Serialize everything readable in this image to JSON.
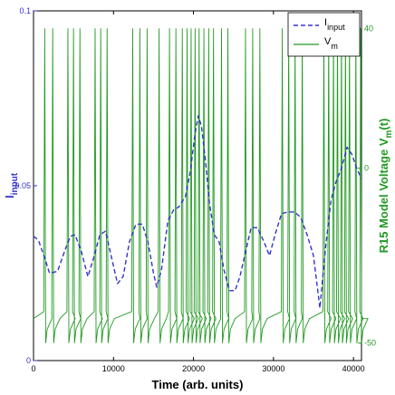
{
  "chart_data": {
    "type": "line",
    "xlabel": "Time (arb. units)",
    "x_ticks": [
      {
        "value": 0,
        "label": "0"
      },
      {
        "value": 10000,
        "label": "10000"
      },
      {
        "value": 20000,
        "label": "20000"
      },
      {
        "value": 30000,
        "label": "30000"
      },
      {
        "value": 40000,
        "label": "40000"
      }
    ],
    "xlim": [
      0,
      41000
    ],
    "y_left": {
      "label_main": "I",
      "label_sub": "input",
      "lim": [
        0,
        0.1
      ],
      "color": "#3333cc",
      "ticks": [
        {
          "value": 0,
          "label": "0"
        },
        {
          "value": 0.05,
          "label": "0.05"
        },
        {
          "value": 0.1,
          "label": "0.1"
        }
      ]
    },
    "y_right": {
      "label_main": "R15 Model Voltage V",
      "label_sub": "m",
      "label_end": "(t)",
      "lim": [
        -55,
        45
      ],
      "color": "#229922",
      "ticks": [
        {
          "value": -50,
          "label": "-50"
        },
        {
          "value": 0,
          "label": "0"
        },
        {
          "value": 40,
          "label": "40"
        }
      ]
    },
    "legend": {
      "position": "top-right",
      "entries": [
        {
          "main": "I",
          "sub": "input",
          "style": "dashed",
          "color": "#3333cc"
        },
        {
          "main": "V",
          "sub": "m",
          "style": "solid",
          "color": "#229922"
        }
      ]
    },
    "series": [
      {
        "name": "I_input",
        "axis": "left",
        "color": "#3333cc",
        "style": "dashed",
        "x": [
          0,
          600,
          1300,
          2000,
          3000,
          4000,
          4600,
          5200,
          6000,
          6800,
          7600,
          8300,
          9000,
          9800,
          10500,
          11200,
          12000,
          12800,
          13600,
          14300,
          15000,
          15400,
          16000,
          16800,
          17500,
          18200,
          19000,
          19600,
          20200,
          20600,
          21000,
          21500,
          22000,
          22600,
          23200,
          23800,
          24500,
          25200,
          25800,
          26500,
          27200,
          28000,
          28800,
          29500,
          30200,
          31000,
          31800,
          32600,
          33400,
          34200,
          35000,
          35800,
          36500,
          37200,
          37800,
          38500,
          39200,
          39800,
          40400,
          41000
        ],
        "y": [
          0.0355,
          0.0345,
          0.03,
          0.025,
          0.0255,
          0.032,
          0.0355,
          0.036,
          0.031,
          0.024,
          0.03,
          0.036,
          0.037,
          0.029,
          0.022,
          0.024,
          0.034,
          0.039,
          0.039,
          0.034,
          0.025,
          0.021,
          0.026,
          0.04,
          0.043,
          0.044,
          0.047,
          0.054,
          0.065,
          0.07,
          0.067,
          0.057,
          0.045,
          0.036,
          0.034,
          0.026,
          0.02,
          0.02,
          0.024,
          0.031,
          0.038,
          0.038,
          0.034,
          0.03,
          0.036,
          0.042,
          0.0425,
          0.0425,
          0.041,
          0.036,
          0.03,
          0.015,
          0.032,
          0.046,
          0.051,
          0.055,
          0.061,
          0.059,
          0.055,
          0.052
        ]
      },
      {
        "name": "V_m",
        "axis": "right",
        "color": "#229922",
        "style": "solid",
        "resting": -43,
        "peak": 40,
        "trough": -50,
        "spike_times": [
          1400,
          2400,
          4300,
          5000,
          5800,
          7700,
          8400,
          9200,
          12400,
          13300,
          14200,
          15700,
          17000,
          17800,
          18600,
          19200,
          19700,
          20200,
          20700,
          21300,
          21900,
          22500,
          23500,
          24300,
          26500,
          27400,
          28300,
          31100,
          31900,
          32700,
          33600,
          36300,
          36900,
          37500,
          38000,
          38500,
          39000,
          39500,
          40300,
          40900
        ]
      }
    ]
  }
}
